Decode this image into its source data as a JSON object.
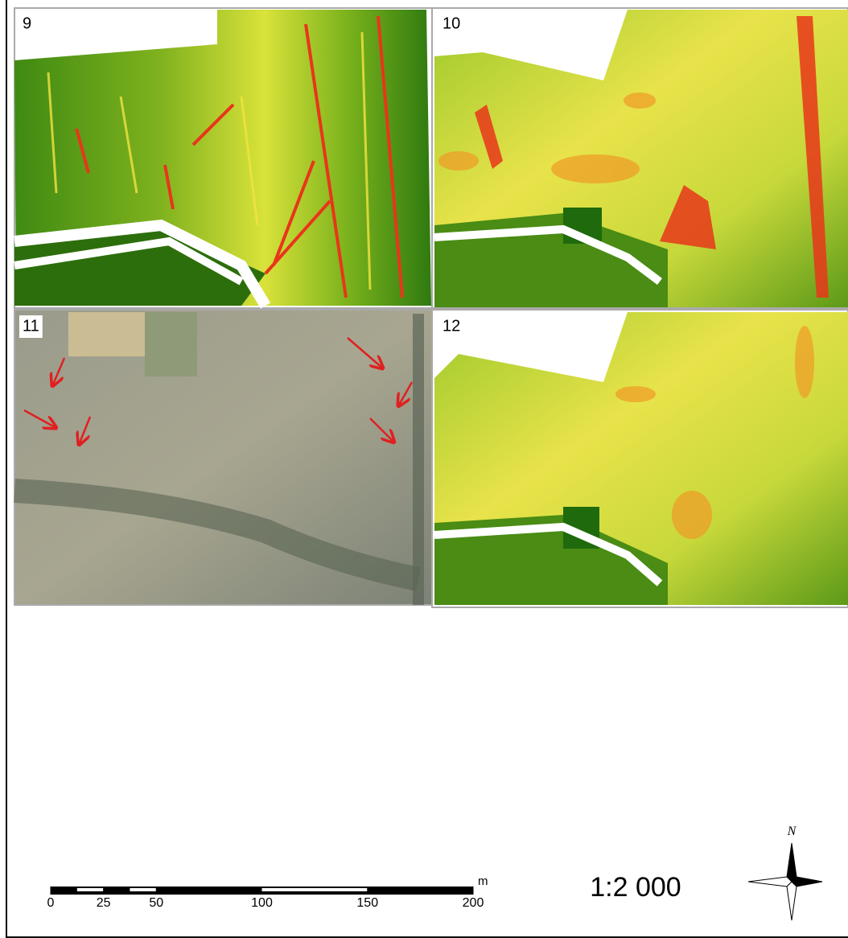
{
  "panels": [
    {
      "label": "9"
    },
    {
      "label": "10"
    },
    {
      "label": "11"
    },
    {
      "label": "12"
    }
  ],
  "scale_bar": {
    "ticks": [
      0,
      25,
      50,
      100,
      150,
      200
    ],
    "unit": "m"
  },
  "scale": "1:2 000",
  "north_arrow": "N"
}
